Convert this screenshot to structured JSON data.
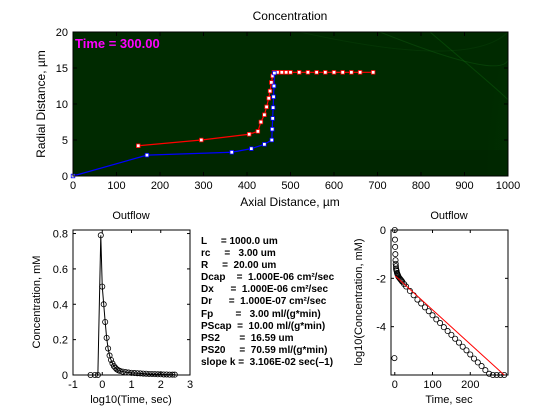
{
  "chart_data": [
    {
      "type": "heatmap",
      "title": "Concentration",
      "xlabel": "Axial Distance, µm",
      "ylabel": "Radial Distance, µm",
      "xlim": [
        0,
        1000
      ],
      "ylim": [
        0,
        20
      ],
      "xticks": [
        0,
        100,
        200,
        300,
        400,
        500,
        600,
        700,
        800,
        900,
        1000
      ],
      "yticks": [
        0,
        5,
        10,
        15,
        20
      ],
      "annotation": "Time = 300.00",
      "annotation_color": "#ff00ff",
      "colors": {
        "dark": "#002a00",
        "mid": "#0f5a0f",
        "light": "#1e9a1e"
      },
      "series": [
        {
          "color": "#ff0000",
          "marker": "square",
          "points": [
            [
              150,
              4.2
            ],
            [
              295,
              5.0
            ],
            [
              405,
              5.8
            ],
            [
              425,
              6.2
            ],
            [
              432,
              7.5
            ],
            [
              440,
              8.5
            ],
            [
              445,
              9.6
            ],
            [
              450,
              10.8
            ],
            [
              453,
              11.8
            ],
            [
              456,
              13.0
            ],
            [
              459,
              13.9
            ],
            [
              462,
              14.4
            ],
            [
              470,
              14.4
            ],
            [
              480,
              14.4
            ],
            [
              490,
              14.4
            ],
            [
              500,
              14.4
            ],
            [
              520,
              14.4
            ],
            [
              540,
              14.4
            ],
            [
              560,
              14.4
            ],
            [
              580,
              14.4
            ],
            [
              600,
              14.4
            ],
            [
              620,
              14.4
            ],
            [
              640,
              14.4
            ],
            [
              660,
              14.4
            ],
            [
              690,
              14.4
            ]
          ]
        },
        {
          "color": "#0000ff",
          "marker": "square",
          "points": [
            [
              0,
              0.0
            ],
            [
              170,
              2.9
            ],
            [
              365,
              3.3
            ],
            [
              410,
              3.8
            ],
            [
              440,
              4.4
            ],
            [
              457,
              5.0
            ],
            [
              458,
              6.5
            ],
            [
              459,
              8.0
            ],
            [
              460,
              9.5
            ],
            [
              461,
              11.0
            ],
            [
              462,
              12.5
            ],
            [
              463,
              14.3
            ]
          ]
        }
      ]
    },
    {
      "type": "line",
      "title": "Outflow",
      "xlabel": "log10(Time, sec)",
      "ylabel": "Concentration, mM",
      "xlim": [
        -1,
        3
      ],
      "ylim": [
        0,
        0.82
      ],
      "xticks": [
        -1,
        0,
        1,
        2,
        3
      ],
      "yticks": [
        0,
        0.2,
        0.4,
        0.6,
        0.8
      ],
      "series": [
        {
          "marker": "circle",
          "points": [
            [
              -0.4,
              0.0
            ],
            [
              -0.25,
              0.0
            ],
            [
              -0.15,
              0.0
            ],
            [
              -0.05,
              0.79
            ],
            [
              0.0,
              0.5
            ],
            [
              0.05,
              0.4
            ],
            [
              0.1,
              0.3
            ],
            [
              0.15,
              0.21
            ],
            [
              0.2,
              0.15
            ],
            [
              0.25,
              0.11
            ],
            [
              0.3,
              0.085
            ],
            [
              0.35,
              0.065
            ],
            [
              0.4,
              0.05
            ],
            [
              0.45,
              0.04
            ],
            [
              0.5,
              0.032
            ],
            [
              0.55,
              0.027
            ],
            [
              0.6,
              0.023
            ],
            [
              0.7,
              0.019
            ],
            [
              0.8,
              0.016
            ],
            [
              0.9,
              0.014
            ],
            [
              1.0,
              0.012
            ],
            [
              1.1,
              0.011
            ],
            [
              1.2,
              0.01
            ],
            [
              1.3,
              0.009
            ],
            [
              1.4,
              0.008
            ],
            [
              1.5,
              0.007
            ],
            [
              1.6,
              0.006
            ],
            [
              1.7,
              0.006
            ],
            [
              1.8,
              0.005
            ],
            [
              1.9,
              0.004
            ],
            [
              2.0,
              0.004
            ],
            [
              2.1,
              0.003
            ],
            [
              2.2,
              0.003
            ],
            [
              2.3,
              0.002
            ],
            [
              2.4,
              0.002
            ],
            [
              2.48,
              0.002
            ]
          ]
        }
      ]
    },
    {
      "type": "line",
      "title": "Outflow",
      "xlabel": "Time, sec",
      "ylabel": "log10(Concentration, mM)",
      "xlim": [
        -10,
        300
      ],
      "ylim": [
        -6,
        0
      ],
      "xticks": [
        0,
        100,
        200
      ],
      "yticks": [
        0,
        -2,
        -4
      ],
      "series": [
        {
          "marker": "circle",
          "points": [
            [
              0,
              0.0
            ],
            [
              0.5,
              -0.4
            ],
            [
              1,
              -0.7
            ],
            [
              1.5,
              -1.0
            ],
            [
              2,
              -1.25
            ],
            [
              2.5,
              -1.4
            ],
            [
              3,
              -1.5
            ],
            [
              3.5,
              -1.6
            ],
            [
              4,
              -1.65
            ],
            [
              5,
              -1.7
            ],
            [
              6,
              -1.78
            ],
            [
              7,
              -1.82
            ],
            [
              8,
              -1.86
            ],
            [
              9,
              -1.9
            ],
            [
              10,
              -1.94
            ],
            [
              12,
              -1.98
            ],
            [
              14,
              -2.02
            ],
            [
              16,
              -2.06
            ],
            [
              18,
              -2.1
            ],
            [
              20,
              -2.14
            ],
            [
              25,
              -2.24
            ],
            [
              30,
              -2.34
            ],
            [
              40,
              -2.52
            ],
            [
              50,
              -2.7
            ],
            [
              60,
              -2.88
            ],
            [
              70,
              -3.04
            ],
            [
              80,
              -3.2
            ],
            [
              90,
              -3.36
            ],
            [
              100,
              -3.53
            ],
            [
              110,
              -3.7
            ],
            [
              120,
              -3.85
            ],
            [
              130,
              -4.02
            ],
            [
              140,
              -4.18
            ],
            [
              150,
              -4.34
            ],
            [
              160,
              -4.5
            ],
            [
              170,
              -4.66
            ],
            [
              180,
              -4.83
            ],
            [
              190,
              -4.98
            ],
            [
              200,
              -5.15
            ],
            [
              210,
              -5.32
            ],
            [
              220,
              -5.48
            ],
            [
              230,
              -5.63
            ],
            [
              240,
              -5.8
            ],
            [
              250,
              -5.95
            ],
            [
              260,
              -6.1
            ],
            [
              270,
              -6.28
            ],
            [
              280,
              -6.44
            ],
            [
              290,
              -6.6
            ],
            [
              -1,
              -5.3
            ]
          ]
        },
        {
          "color": "#ff0000",
          "line_only": true,
          "points": [
            [
              1,
              -1.9
            ],
            [
              290,
              -6.6
            ]
          ]
        }
      ]
    }
  ],
  "params": [
    "L     = 1000.0 um",
    "rc     =   3.00 um",
    "R     =  20.00 um",
    "Dcap    =  1.000E-06 cm²/sec",
    "Dx      =  1.000E-06 cm²/sec",
    "Dr      =  1.000E-07 cm²/sec",
    "Fp        =   3.00 ml/(g*min)",
    "PScap  =  10.00 ml/(g*min)",
    "PS2       =  16.59 um",
    "PS20     =  70.59 ml/(g*min)",
    "slope k =  3.106E-02 sec(–1)"
  ]
}
